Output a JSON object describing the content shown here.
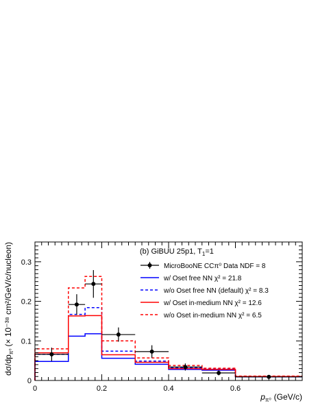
{
  "chart_data": {
    "type": "line",
    "panel_title": "(b) GiBUU 25p1, T",
    "panel_title_sub": "1",
    "panel_title_tail": "=1",
    "xlabel_main": "p",
    "xlabel_sub": "π⁰",
    "xlabel_unit": "(GeV/c)",
    "ylabel_prefix": "dσ/dp",
    "ylabel_sub": "π⁰",
    "ylabel_unit": "(× 10⁻³⁸ cm²/GeV/c/nucleon)",
    "xlim": [
      0,
      0.8
    ],
    "ylim": [
      0,
      0.35
    ],
    "x_ticks": [
      0,
      0.2,
      0.4,
      0.6
    ],
    "x_tick_labels": [
      "0",
      "0.2",
      "0.4",
      "0.6"
    ],
    "y_ticks": [
      0,
      0.1,
      0.2,
      0.3
    ],
    "y_tick_labels": [
      "0",
      "0.1",
      "0.2",
      "0.3"
    ],
    "bin_edges": [
      0,
      0.1,
      0.15,
      0.2,
      0.3,
      0.4,
      0.5,
      0.6,
      0.8
    ],
    "data": {
      "name": "MicroBooNE CCπ⁰ Data NDF = 8",
      "x": [
        0.05,
        0.125,
        0.175,
        0.25,
        0.35,
        0.45,
        0.55,
        0.7
      ],
      "xerr": [
        0.05,
        0.025,
        0.025,
        0.05,
        0.05,
        0.05,
        0.05,
        0.1
      ],
      "y": [
        0.066,
        0.192,
        0.244,
        0.116,
        0.073,
        0.034,
        0.019,
        0.009
      ],
      "yerr": [
        0.017,
        0.026,
        0.035,
        0.018,
        0.016,
        0.009,
        0.006,
        0.003
      ],
      "color": "#000000"
    },
    "series": [
      {
        "name": "w/ Oset free NN  χ² = 21.8",
        "color": "#0000ff",
        "dashed": false,
        "values": [
          0.048,
          0.112,
          0.118,
          0.056,
          0.041,
          0.028,
          0.026,
          0.009
        ]
      },
      {
        "name": "w/o Oset free NN (default) χ² = 8.3",
        "color": "#0000ff",
        "dashed": true,
        "values": [
          0.066,
          0.167,
          0.184,
          0.074,
          0.049,
          0.032,
          0.029,
          0.01
        ]
      },
      {
        "name": "w/ Oset in-medium NN  χ² = 12.6",
        "color": "#ff0000",
        "dashed": false,
        "values": [
          0.07,
          0.163,
          0.164,
          0.065,
          0.046,
          0.03,
          0.028,
          0.01
        ]
      },
      {
        "name": "w/o Oset in-medium NN  χ² = 6.5",
        "color": "#ff0000",
        "dashed": true,
        "values": [
          0.08,
          0.234,
          0.263,
          0.1,
          0.057,
          0.038,
          0.031,
          0.011
        ]
      }
    ]
  }
}
